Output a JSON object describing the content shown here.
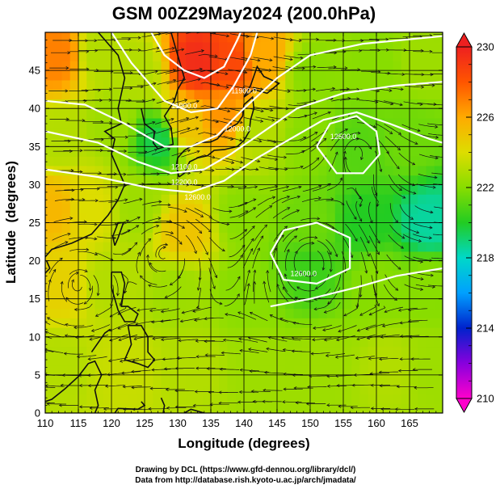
{
  "chart_data": {
    "type": "heatmap",
    "title": "GSM 00Z29May2024 (200.0hPa)",
    "xlabel": "Longitude (degrees)",
    "ylabel": "Latitude  (degrees)",
    "xlim": [
      110,
      170
    ],
    "ylim": [
      0,
      50
    ],
    "x_ticks": [
      110,
      115,
      120,
      125,
      130,
      135,
      140,
      145,
      150,
      155,
      160,
      165
    ],
    "y_ticks": [
      0,
      5,
      10,
      15,
      20,
      25,
      30,
      35,
      40,
      45
    ],
    "colorbar": {
      "min": 210,
      "max": 230,
      "ticks": [
        210,
        214,
        218,
        222,
        226,
        230
      ],
      "colors": [
        "#ff00cc",
        "#8800dd",
        "#0022cc",
        "#00a0ff",
        "#00d8c8",
        "#22cc22",
        "#88dd00",
        "#dddd00",
        "#ffaa00",
        "#ff5500",
        "#ee2020"
      ]
    },
    "grid": true,
    "field": [
      {
        "lon": 112,
        "lat": 47,
        "value": 227
      },
      {
        "lon": 118,
        "lat": 47,
        "value": 223
      },
      {
        "lon": 124,
        "lat": 45,
        "value": 223
      },
      {
        "lon": 133,
        "lat": 46,
        "value": 229.5
      },
      {
        "lon": 138,
        "lat": 46,
        "value": 228.5
      },
      {
        "lon": 143,
        "lat": 47,
        "value": 226
      },
      {
        "lon": 150,
        "lat": 45,
        "value": 222
      },
      {
        "lon": 160,
        "lat": 45,
        "value": 222
      },
      {
        "lon": 167,
        "lat": 46,
        "value": 222.5
      },
      {
        "lon": 112,
        "lat": 36,
        "value": 223
      },
      {
        "lon": 120,
        "lat": 38,
        "value": 222.5
      },
      {
        "lon": 127,
        "lat": 36,
        "value": 219.5
      },
      {
        "lon": 131,
        "lat": 38,
        "value": 225
      },
      {
        "lon": 137,
        "lat": 39,
        "value": 226.5
      },
      {
        "lon": 142,
        "lat": 37,
        "value": 223
      },
      {
        "lon": 150,
        "lat": 36,
        "value": 222
      },
      {
        "lon": 157,
        "lat": 35,
        "value": 221
      },
      {
        "lon": 165,
        "lat": 36,
        "value": 221.5
      },
      {
        "lon": 111,
        "lat": 27,
        "value": 225.5
      },
      {
        "lon": 117,
        "lat": 27,
        "value": 224
      },
      {
        "lon": 124,
        "lat": 27,
        "value": 222.5
      },
      {
        "lon": 131,
        "lat": 24,
        "value": 225
      },
      {
        "lon": 140,
        "lat": 26,
        "value": 222
      },
      {
        "lon": 150,
        "lat": 25,
        "value": 221.5
      },
      {
        "lon": 158,
        "lat": 25,
        "value": 220
      },
      {
        "lon": 168,
        "lat": 25,
        "value": 218.5
      },
      {
        "lon": 112,
        "lat": 17,
        "value": 224.5
      },
      {
        "lon": 120,
        "lat": 17,
        "value": 223
      },
      {
        "lon": 130,
        "lat": 16,
        "value": 222.5
      },
      {
        "lon": 140,
        "lat": 16,
        "value": 222
      },
      {
        "lon": 150,
        "lat": 19,
        "value": 220.5
      },
      {
        "lon": 160,
        "lat": 17,
        "value": 222
      },
      {
        "lon": 168,
        "lat": 17,
        "value": 222
      },
      {
        "lon": 112,
        "lat": 6,
        "value": 223
      },
      {
        "lon": 122,
        "lat": 6,
        "value": 223.5
      },
      {
        "lon": 132,
        "lat": 6,
        "value": 223
      },
      {
        "lon": 142,
        "lat": 6,
        "value": 222.5
      },
      {
        "lon": 152,
        "lat": 6,
        "value": 222.5
      },
      {
        "lon": 162,
        "lat": 6,
        "value": 223
      },
      {
        "lon": 168,
        "lat": 6,
        "value": 222.5
      }
    ],
    "contour_labels": [
      {
        "text": "11900.0",
        "lon": 140,
        "lat": 42
      },
      {
        "text": "11900.0",
        "lon": 131,
        "lat": 40
      },
      {
        "text": "12000.0",
        "lon": 139,
        "lat": 37
      },
      {
        "text": "12100.0",
        "lon": 131,
        "lat": 32
      },
      {
        "text": "12200.0",
        "lon": 131,
        "lat": 30
      },
      {
        "text": "12600.0",
        "lon": 133,
        "lat": 28
      },
      {
        "text": "12500.0",
        "lon": 155,
        "lat": 36
      },
      {
        "text": "12600.0",
        "lon": 149,
        "lat": 18
      }
    ]
  },
  "credits": [
    "Drawing by DCL (https://www.gfd-dennou.org/library/dcl/)",
    "Data from http://database.rish.kyoto-u.ac.jp/arch/jmadata/"
  ]
}
